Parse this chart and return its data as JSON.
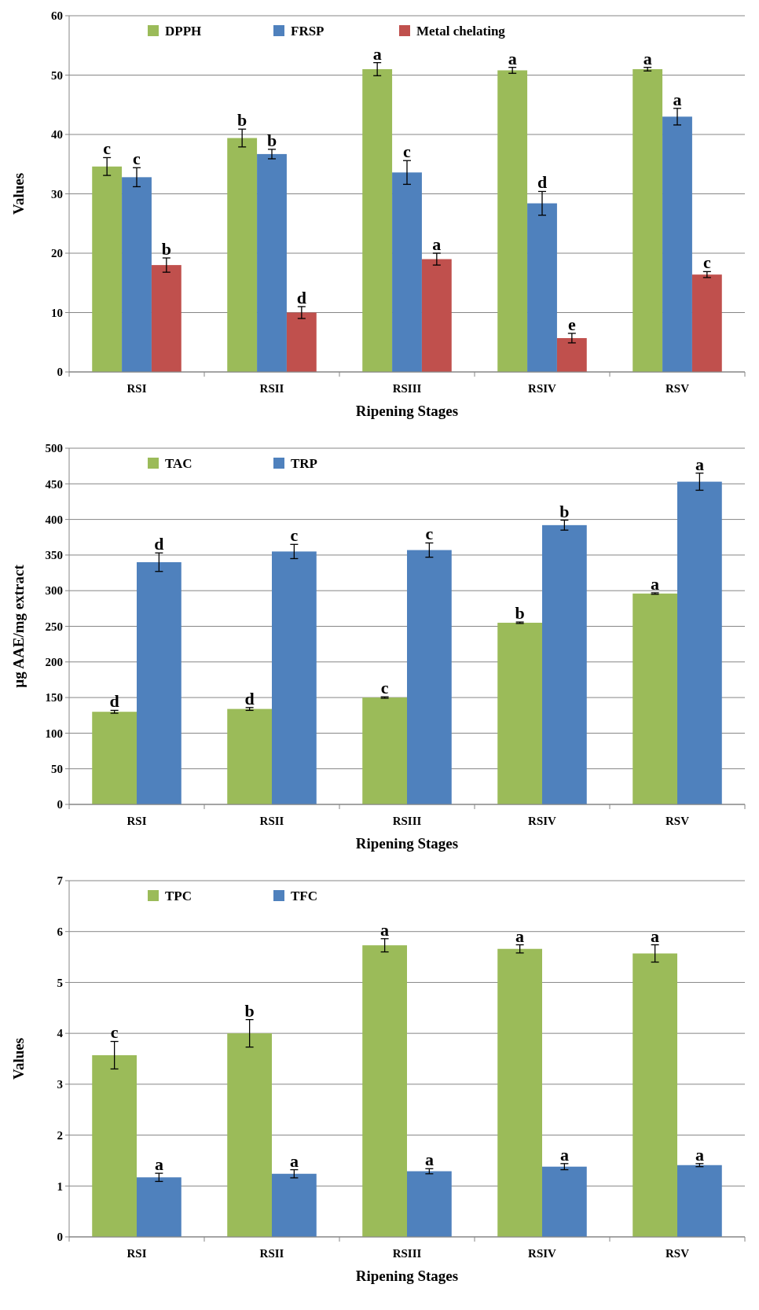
{
  "chart_data": [
    {
      "type": "bar",
      "xlabel": "Ripening Stages",
      "ylabel": "Values",
      "categories": [
        "RSI",
        "RSII",
        "RSIII",
        "RSIV",
        "RSV"
      ],
      "ylim": [
        0,
        60
      ],
      "yticks": [
        0,
        10,
        20,
        30,
        40,
        50,
        60
      ],
      "grid": "y",
      "legend": "top",
      "series": [
        {
          "name": "DPPH",
          "color": "#9bbb59",
          "values": [
            34.6,
            39.4,
            51,
            50.8,
            51
          ],
          "errors": [
            1.5,
            1.5,
            1.1,
            0.5,
            0.3
          ],
          "value_labels": [
            "c",
            "b",
            "a",
            "a",
            "a"
          ]
        },
        {
          "name": "FRSP",
          "color": "#4f81bd",
          "values": [
            32.8,
            36.7,
            33.6,
            28.4,
            43
          ],
          "errors": [
            1.6,
            0.8,
            2,
            2,
            1.4
          ],
          "value_labels": [
            "c",
            "b",
            "c",
            "d",
            "a"
          ]
        },
        {
          "name": "Metal chelating",
          "color": "#c0504d",
          "values": [
            18,
            10,
            19,
            5.7,
            16.4
          ],
          "errors": [
            1.2,
            1,
            1,
            0.8,
            0.5
          ],
          "value_labels": [
            "b",
            "d",
            "a",
            "e",
            "c"
          ]
        }
      ]
    },
    {
      "type": "bar",
      "xlabel": "Ripening Stages",
      "ylabel": "µg AAE/mg extract",
      "categories": [
        "RSI",
        "RSII",
        "RSIII",
        "RSIV",
        "RSV"
      ],
      "ylim": [
        0,
        500
      ],
      "yticks": [
        0,
        50,
        100,
        150,
        200,
        250,
        300,
        350,
        400,
        450,
        500
      ],
      "grid": "y",
      "legend": "top",
      "series": [
        {
          "name": "TAC",
          "color": "#9bbb59",
          "values": [
            130,
            134,
            150,
            255,
            296
          ],
          "errors": [
            2,
            2,
            1,
            1,
            1
          ],
          "value_labels": [
            "d",
            "d",
            "c",
            "b",
            "a"
          ]
        },
        {
          "name": "TRP",
          "color": "#4f81bd",
          "values": [
            340,
            355,
            357,
            392,
            453
          ],
          "errors": [
            13,
            10,
            10,
            7,
            12
          ],
          "value_labels": [
            "d",
            "c",
            "c",
            "b",
            "a"
          ]
        }
      ]
    },
    {
      "type": "bar",
      "xlabel": "Ripening Stages",
      "ylabel": "Values",
      "categories": [
        "RSI",
        "RSII",
        "RSIII",
        "RSIV",
        "RSV"
      ],
      "ylim": [
        0,
        7
      ],
      "yticks": [
        0,
        1,
        2,
        3,
        4,
        5,
        6,
        7
      ],
      "grid": "y",
      "legend": "top",
      "series": [
        {
          "name": "TPC",
          "color": "#9bbb59",
          "values": [
            3.57,
            4.0,
            5.73,
            5.66,
            5.57
          ],
          "errors": [
            0.27,
            0.27,
            0.13,
            0.08,
            0.17
          ],
          "value_labels": [
            "c",
            "b",
            "a",
            "a",
            "a"
          ]
        },
        {
          "name": "TFC",
          "color": "#4f81bd",
          "values": [
            1.17,
            1.24,
            1.29,
            1.38,
            1.41
          ],
          "errors": [
            0.08,
            0.08,
            0.05,
            0.06,
            0.03
          ],
          "value_labels": [
            "a",
            "a",
            "a",
            "a",
            "a"
          ]
        }
      ]
    }
  ]
}
